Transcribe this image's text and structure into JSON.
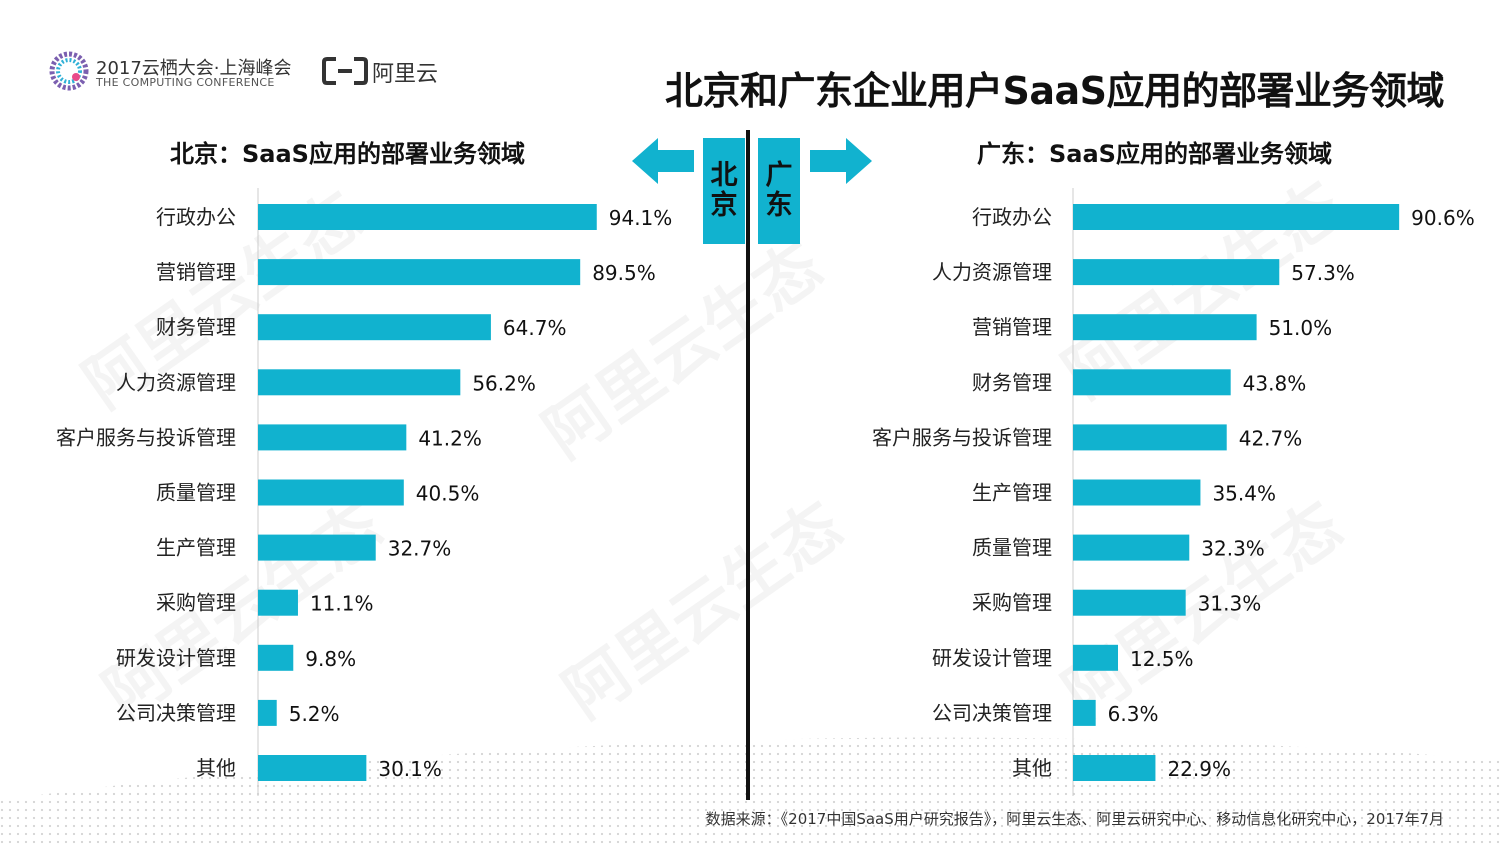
{
  "header": {
    "conference_name": "2017云栖大会·上海峰会",
    "conference_sub": "THE COMPUTING CONFERENCE",
    "brand_text": "阿里云",
    "main_title": "北京和广东企业用户SaaS应用的部署业务领域"
  },
  "regions": {
    "beijing": "北京",
    "guangdong": "广东"
  },
  "watermark_text": "阿里云生态",
  "colors": {
    "bar": "#11b2cf",
    "arrow": "#11b2cf",
    "divider": "#111111"
  },
  "chart_data": [
    {
      "type": "bar",
      "orientation": "horizontal",
      "title": "北京：SaaS应用的部署业务领域",
      "categories": [
        "行政办公",
        "营销管理",
        "财务管理",
        "人力资源管理",
        "客户服务与投诉管理",
        "质量管理",
        "生产管理",
        "采购管理",
        "研发设计管理",
        "公司决策管理",
        "其他"
      ],
      "values": [
        94.1,
        89.5,
        64.7,
        56.2,
        41.2,
        40.5,
        32.7,
        11.1,
        9.8,
        5.2,
        30.1
      ],
      "labels": [
        "94.1%",
        "89.5%",
        "64.7%",
        "56.2%",
        "41.2%",
        "40.5%",
        "32.7%",
        "11.1%",
        "9.8%",
        "5.2%",
        "30.1%"
      ],
      "unit": "%",
      "xlim": [
        0,
        100
      ]
    },
    {
      "type": "bar",
      "orientation": "horizontal",
      "title": "广东：SaaS应用的部署业务领域",
      "categories": [
        "行政办公",
        "人力资源管理",
        "营销管理",
        "财务管理",
        "客户服务与投诉管理",
        "生产管理",
        "质量管理",
        "采购管理",
        "研发设计管理",
        "公司决策管理",
        "其他"
      ],
      "values": [
        90.6,
        57.3,
        51.0,
        43.8,
        42.7,
        35.4,
        32.3,
        31.3,
        12.5,
        6.3,
        22.9
      ],
      "labels": [
        "90.6%",
        "57.3%",
        "51.0%",
        "43.8%",
        "42.7%",
        "35.4%",
        "32.3%",
        "31.3%",
        "12.5%",
        "6.3%",
        "22.9%"
      ],
      "unit": "%",
      "xlim": [
        0,
        100
      ]
    }
  ],
  "footer": {
    "source": "数据来源：《2017中国SaaS用户研究报告》，阿里云生态、阿里云研究中心、移动信息化研究中心，2017年7月"
  }
}
